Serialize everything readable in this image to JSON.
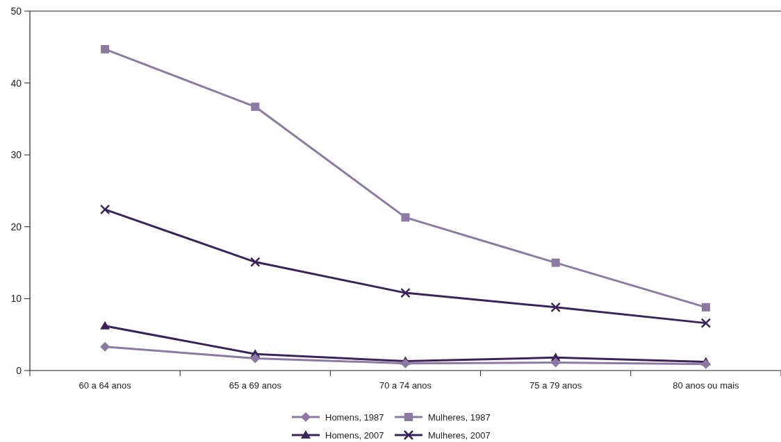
{
  "chart_data": {
    "type": "line",
    "categories": [
      "60 a 64 anos",
      "65 a 69 anos",
      "70 a 74 anos",
      "75 a 79 anos",
      "80 anos ou mais"
    ],
    "ylim": [
      0,
      50
    ],
    "yticks": [
      0,
      10,
      20,
      30,
      40,
      50
    ],
    "grid": false,
    "legend": "bottom",
    "line_style": "solid",
    "series": [
      {
        "name": "Homens, 1987",
        "color": "#8c7aa3",
        "marker": "diamond",
        "values": [
          3.3,
          1.7,
          1.0,
          1.1,
          0.9
        ]
      },
      {
        "name": "Mulheres, 1987",
        "color": "#8c7aa3",
        "marker": "square",
        "values": [
          44.7,
          36.7,
          21.3,
          15.0,
          8.8
        ]
      },
      {
        "name": "Homens, 2007",
        "color": "#3a2358",
        "marker": "triangle",
        "values": [
          6.2,
          2.3,
          1.3,
          1.8,
          1.2
        ]
      },
      {
        "name": "Mulheres, 2007",
        "color": "#3a2358",
        "marker": "cross",
        "values": [
          22.4,
          15.1,
          10.8,
          8.8,
          6.6
        ]
      }
    ]
  }
}
